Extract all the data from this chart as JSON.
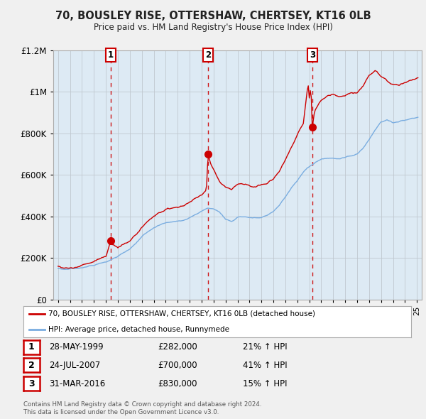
{
  "title": "70, BOUSLEY RISE, OTTERSHAW, CHERTSEY, KT16 0LB",
  "subtitle": "Price paid vs. HM Land Registry's House Price Index (HPI)",
  "sale_dates": [
    1999.38,
    2007.55,
    2016.25
  ],
  "sale_prices": [
    282000,
    700000,
    830000
  ],
  "sale_labels": [
    "1",
    "2",
    "3"
  ],
  "sale_date_labels": [
    "28-MAY-1999",
    "24-JUL-2007",
    "31-MAR-2016"
  ],
  "sale_price_labels": [
    "£282,000",
    "£700,000",
    "£830,000"
  ],
  "sale_pct_labels": [
    "21% ↑ HPI",
    "41% ↑ HPI",
    "15% ↑ HPI"
  ],
  "red_label": "70, BOUSLEY RISE, OTTERSHAW, CHERTSEY, KT16 0LB (detached house)",
  "blue_label": "HPI: Average price, detached house, Runnymede",
  "footer1": "Contains HM Land Registry data © Crown copyright and database right 2024.",
  "footer2": "This data is licensed under the Open Government Licence v3.0.",
  "red_color": "#cc0000",
  "blue_color": "#7aade0",
  "dashed_color": "#cc0000",
  "bg_color": "#f0f0f0",
  "plot_bg": "#ddeaf4",
  "ylim": [
    0,
    1200000
  ],
  "xlim_start": 1994.6,
  "xlim_end": 2025.4,
  "yticks": [
    0,
    200000,
    400000,
    600000,
    800000,
    1000000,
    1200000
  ],
  "ytick_labels": [
    "£0",
    "£200K",
    "£400K",
    "£600K",
    "£800K",
    "£1M",
    "£1.2M"
  ]
}
